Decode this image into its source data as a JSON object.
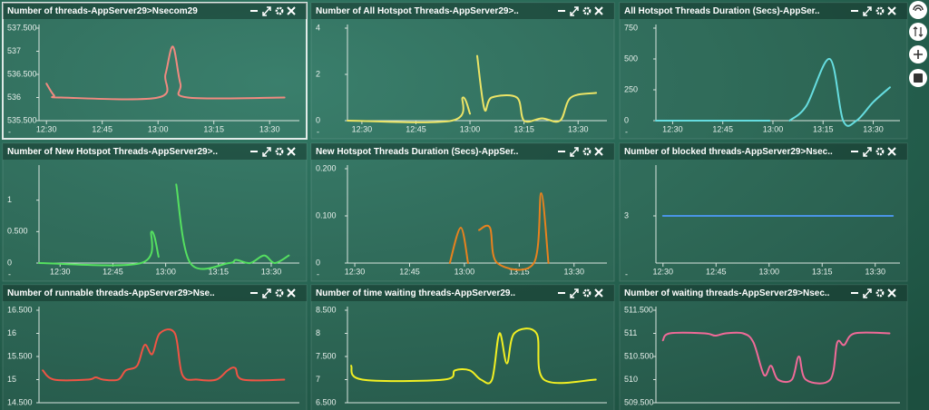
{
  "chart_data": [
    {
      "type": "line",
      "title": "Number of threads-AppServer29>Nsecom29",
      "color": "#f08a80",
      "x": [
        "12:30",
        "12:32",
        "12:34",
        "13:00",
        "13:02",
        "13:04",
        "13:06",
        "13:08",
        "13:34"
      ],
      "values": [
        536.3,
        536.05,
        536,
        536,
        536.5,
        537.1,
        536.3,
        536,
        536
      ],
      "xlim": [
        "12:28",
        "13:38"
      ],
      "xticks": [
        "12:30",
        "12:45",
        "13:00",
        "13:15",
        "13:30"
      ],
      "ylim": [
        535.5,
        537.5
      ],
      "yticks": [
        {
          "value": 535.5,
          "label": "535.500"
        },
        536,
        {
          "value": 536.5,
          "label": "536.500"
        },
        537,
        {
          "value": 537.5,
          "label": "537.500"
        }
      ],
      "corner_label": "-"
    },
    {
      "type": "line",
      "title": "Number of All Hotspot Threads-AppServer29>..",
      "color": "#ece466",
      "x": [
        "12:26",
        "12:55",
        "12:58",
        "13:00",
        "13:01",
        "13:02",
        "13:04",
        "13:06",
        "13:13",
        "13:15",
        "13:20",
        "13:25",
        "13:28",
        "13:35"
      ],
      "values": [
        0,
        0,
        1,
        0.3,
        null,
        2.8,
        0.5,
        1,
        1,
        0,
        0.1,
        0,
        1,
        1.2
      ],
      "xlim": [
        "12:26",
        "13:38"
      ],
      "xticks": [
        "12:30",
        "12:45",
        "13:00",
        "13:15",
        "13:30"
      ],
      "ylim": [
        0,
        4
      ],
      "yticks": [
        0,
        2,
        4
      ],
      "corner_label": "-"
    },
    {
      "type": "line",
      "title": "All Hotspot Threads Duration (Secs)-AppSer..",
      "color": "#66dde0",
      "x": [
        "12:25",
        "12:59",
        "13:00",
        "13:05",
        "13:10",
        "13:17",
        "13:21",
        "13:25",
        "13:30",
        "13:35"
      ],
      "values": [
        0,
        0,
        null,
        0,
        120,
        500,
        0,
        0,
        150,
        270
      ],
      "xlim": [
        "12:25",
        "13:38"
      ],
      "xticks": [
        "12:30",
        "12:45",
        "13:00",
        "13:15",
        "13:30"
      ],
      "ylim": [
        0,
        750
      ],
      "yticks": [
        0,
        250,
        500,
        750
      ],
      "corner_label": "-"
    },
    {
      "type": "line",
      "title": "Number of New Hotspot Threads-AppServer29>..",
      "color": "#55e060",
      "x": [
        "12:24",
        "12:53",
        "12:56",
        "12:58",
        "13:00",
        "13:03",
        "13:07",
        "13:18",
        "13:20",
        "13:24",
        "13:28",
        "13:31",
        "13:35"
      ],
      "values": [
        0,
        0,
        0.5,
        0.1,
        null,
        1.25,
        0,
        0,
        0.05,
        0,
        0.12,
        0,
        0.12
      ],
      "xlim": [
        "12:24",
        "13:38"
      ],
      "xticks": [
        "12:30",
        "12:45",
        "13:00",
        "13:15",
        "13:30"
      ],
      "ylim": [
        0,
        1.5
      ],
      "yticks": [
        0,
        {
          "value": 0.5,
          "label": "0.500"
        },
        1
      ],
      "corner_label": "-"
    },
    {
      "type": "line",
      "title": "New Hotspot Threads Duration (Secs)-AppSer..",
      "color": "#e8821e",
      "x": [
        "12:56",
        "12:59",
        "13:01",
        "13:02",
        "13:04",
        "13:07",
        "13:09",
        "13:19",
        "13:21",
        "13:23"
      ],
      "values": [
        0,
        0.075,
        0,
        null,
        0.07,
        0.075,
        0,
        0,
        0.148,
        0
      ],
      "xlim": [
        "12:28",
        "13:39"
      ],
      "xticks": [
        "12:30",
        "12:45",
        "13:00",
        "13:15",
        "13:30"
      ],
      "ylim": [
        0,
        0.2
      ],
      "yticks": [
        0,
        {
          "value": 0.1,
          "label": "0.100"
        },
        {
          "value": 0.2,
          "label": "0.200"
        }
      ],
      "corner_label": "-"
    },
    {
      "type": "line",
      "title": "Number of blocked threads-AppServer29>Nsec..",
      "color": "#4a94e6",
      "x": [
        "12:30",
        "13:35"
      ],
      "values": [
        3,
        3
      ],
      "xlim": [
        "12:28",
        "13:37"
      ],
      "xticks": [
        "12:30",
        "12:45",
        "13:00",
        "13:15",
        "13:30"
      ],
      "ylim": [
        2,
        4
      ],
      "yticks": [
        3
      ],
      "corner_label": "-"
    },
    {
      "type": "line",
      "title": "Number of runnable threads-AppServer29>Nse..",
      "color": "#f05444",
      "x": [
        "12:30",
        "12:33",
        "12:42",
        "12:44",
        "12:46",
        "12:50",
        "12:52",
        "12:55",
        "12:57",
        "12:59",
        "13:01",
        "13:05",
        "13:07",
        "13:11",
        "13:16",
        "13:19",
        "13:21",
        "13:23",
        "13:34"
      ],
      "values": [
        15.2,
        15,
        15,
        15.05,
        15,
        15,
        15.2,
        15.3,
        15.75,
        15.55,
        16,
        16,
        15.1,
        15,
        15,
        15.2,
        15.25,
        15,
        15
      ],
      "xlim": [
        "12:29",
        "13:38"
      ],
      "ylim": [
        14.5,
        16.5
      ],
      "yticks": [
        {
          "value": 14.5,
          "label": "14.500"
        },
        15,
        {
          "value": 15.5,
          "label": "15.500"
        },
        16,
        {
          "value": 16.5,
          "label": "16.500"
        }
      ]
    },
    {
      "type": "line",
      "title": "Number of time waiting threads-AppServer29..",
      "color": "#f2f022",
      "x": [
        "12:30",
        "12:33",
        "12:55",
        "12:58",
        "13:02",
        "13:05",
        "13:08",
        "13:10",
        "13:12",
        "13:14",
        "13:20",
        "13:22",
        "13:36"
      ],
      "values": [
        7.3,
        7,
        7,
        7.2,
        7.2,
        7,
        7,
        8,
        7.35,
        8,
        8,
        7,
        7
      ],
      "xlim": [
        "12:29",
        "13:39"
      ],
      "ylim": [
        6.5,
        8.5
      ],
      "yticks": [
        {
          "value": 6.5,
          "label": "6.500"
        },
        7,
        {
          "value": 7.5,
          "label": "7.500"
        },
        8,
        {
          "value": 8.5,
          "label": "8.500"
        }
      ]
    },
    {
      "type": "line",
      "title": "Number of waiting threads-AppServer29>Nsec..",
      "color": "#f06a98",
      "x": [
        "12:30",
        "12:32",
        "12:42",
        "12:45",
        "12:48",
        "12:53",
        "12:56",
        "12:59",
        "13:01",
        "13:03",
        "13:07",
        "13:09",
        "13:11",
        "13:18",
        "13:20",
        "13:22",
        "13:25",
        "13:35"
      ],
      "values": [
        510.85,
        511,
        511,
        510.95,
        511,
        511,
        510.8,
        510.1,
        510.3,
        510,
        510,
        510.5,
        510,
        510,
        510.8,
        510.75,
        511,
        511
      ],
      "xlim": [
        "12:28",
        "13:38"
      ],
      "ylim": [
        509.5,
        511.5
      ],
      "yticks": [
        {
          "value": 509.5,
          "label": "509.500"
        },
        510,
        {
          "value": 510.5,
          "label": "510.500"
        },
        511,
        {
          "value": 511.5,
          "label": "511.500"
        }
      ]
    }
  ]
}
